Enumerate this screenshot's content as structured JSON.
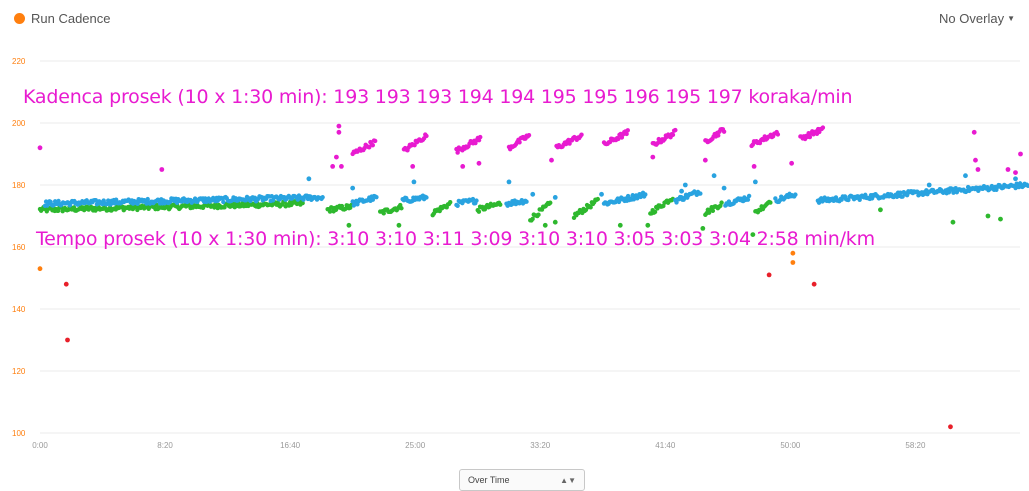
{
  "legend": {
    "label": "Run Cadence",
    "color": "#ff7f0e"
  },
  "overlay": {
    "label": "No Overlay"
  },
  "annotations": {
    "cadence": "Kadenca prosek (10 x 1:30 min):  193 193  193  194 194 195  195 196  195 197 koraka/min",
    "tempo": "Tempo prosek (10 x 1:30 min): 3:10 3:10 3:11 3:09 3:10 3:10 3:05 3:03 3:04 2:58 min/km"
  },
  "time_select": {
    "value": "Over Time"
  },
  "colors": {
    "orange": "#ff7f0e",
    "red": "#e8202a",
    "green": "#2eb82e",
    "blue": "#29a3e0",
    "magenta": "#e81bd0",
    "grid": "#ebebeb",
    "ytick": "#ff7f0e",
    "xtick": "#999999"
  },
  "chart_data": {
    "type": "scatter",
    "title": "",
    "xlabel": "",
    "ylabel": "",
    "xlim": [
      0,
      3950
    ],
    "ylim": [
      100,
      220
    ],
    "yticks": [
      100,
      120,
      140,
      160,
      180,
      200,
      220
    ],
    "xticks": [
      {
        "value": 0,
        "label": "0:00"
      },
      {
        "value": 500,
        "label": "8:20"
      },
      {
        "value": 1000,
        "label": "16:40"
      },
      {
        "value": 1500,
        "label": "25:00"
      },
      {
        "value": 2000,
        "label": "33:20"
      },
      {
        "value": 2500,
        "label": "41:40"
      },
      {
        "value": 3000,
        "label": "50:00"
      },
      {
        "value": 3500,
        "label": "58:20"
      }
    ],
    "grid": true,
    "legend_position": "top-left",
    "series": [
      {
        "name": "Run Cadence",
        "color_key": "orange",
        "points": [
          [
            0,
            153
          ],
          [
            3010,
            158
          ],
          [
            3010,
            155
          ]
        ]
      },
      {
        "color_key": "red",
        "points": [
          [
            105,
            148
          ],
          [
            110,
            130
          ],
          [
            2915,
            151
          ],
          [
            3095,
            148
          ],
          [
            3640,
            102
          ]
        ]
      },
      {
        "color_key": "green",
        "segments": [
          {
            "x0": 0,
            "x1": 1050,
            "y0": 172,
            "y1": 174
          },
          {
            "x0": 1150,
            "x1": 1245,
            "y0": 172,
            "y1": 173
          },
          {
            "x0": 1360,
            "x1": 1445,
            "y0": 171,
            "y1": 173
          },
          {
            "x0": 1570,
            "x1": 1640,
            "y0": 171,
            "y1": 174
          },
          {
            "x0": 1750,
            "x1": 1840,
            "y0": 172,
            "y1": 174
          },
          {
            "x0": 1960,
            "x1": 2040,
            "y0": 169,
            "y1": 174
          },
          {
            "x0": 2135,
            "x1": 2230,
            "y0": 170,
            "y1": 175
          },
          {
            "x0": 2440,
            "x1": 2530,
            "y0": 171,
            "y1": 176
          },
          {
            "x0": 2660,
            "x1": 2725,
            "y0": 171,
            "y1": 174
          },
          {
            "x0": 2860,
            "x1": 2920,
            "y0": 171,
            "y1": 175
          }
        ],
        "points": [
          [
            1235,
            167
          ],
          [
            1435,
            167
          ],
          [
            2020,
            167
          ],
          [
            2060,
            168
          ],
          [
            2320,
            167
          ],
          [
            2430,
            167
          ],
          [
            2650,
            166
          ],
          [
            2850,
            164
          ],
          [
            3360,
            172
          ],
          [
            3650,
            168
          ],
          [
            3790,
            170
          ],
          [
            3840,
            169
          ]
        ]
      },
      {
        "color_key": "blue",
        "segments": [
          {
            "x0": 20,
            "x1": 1130,
            "y0": 174,
            "y1": 176
          },
          {
            "x0": 1250,
            "x1": 1345,
            "y0": 174,
            "y1": 176
          },
          {
            "x0": 1450,
            "x1": 1545,
            "y0": 175,
            "y1": 176
          },
          {
            "x0": 1665,
            "x1": 1745,
            "y0": 174,
            "y1": 175
          },
          {
            "x0": 1865,
            "x1": 1945,
            "y0": 174,
            "y1": 175
          },
          {
            "x0": 2255,
            "x1": 2420,
            "y0": 174,
            "y1": 177
          },
          {
            "x0": 2540,
            "x1": 2640,
            "y0": 175,
            "y1": 178
          },
          {
            "x0": 2740,
            "x1": 2835,
            "y0": 174,
            "y1": 176
          },
          {
            "x0": 2940,
            "x1": 3020,
            "y0": 175,
            "y1": 177
          },
          {
            "x0": 3110,
            "x1": 3950,
            "y0": 175,
            "y1": 180
          }
        ],
        "points": [
          [
            1075,
            182
          ],
          [
            1250,
            179
          ],
          [
            1495,
            181
          ],
          [
            1875,
            181
          ],
          [
            1970,
            177
          ],
          [
            2060,
            176
          ],
          [
            2245,
            177
          ],
          [
            2565,
            178
          ],
          [
            2580,
            180
          ],
          [
            2695,
            183
          ],
          [
            2735,
            179
          ],
          [
            2860,
            181
          ],
          [
            3555,
            180
          ],
          [
            3700,
            183
          ],
          [
            3900,
            182
          ]
        ]
      },
      {
        "color_key": "magenta",
        "segments": [
          {
            "x0": 1250,
            "x1": 1340,
            "y0": 190,
            "y1": 194
          },
          {
            "x0": 1455,
            "x1": 1545,
            "y0": 191,
            "y1": 196
          },
          {
            "x0": 1665,
            "x1": 1760,
            "y0": 191,
            "y1": 195
          },
          {
            "x0": 1875,
            "x1": 1955,
            "y0": 192,
            "y1": 196
          },
          {
            "x0": 2065,
            "x1": 2165,
            "y0": 192,
            "y1": 196
          },
          {
            "x0": 2255,
            "x1": 2350,
            "y0": 193,
            "y1": 197
          },
          {
            "x0": 2450,
            "x1": 2540,
            "y0": 193,
            "y1": 197
          },
          {
            "x0": 2660,
            "x1": 2735,
            "y0": 194,
            "y1": 198
          },
          {
            "x0": 2845,
            "x1": 2950,
            "y0": 193,
            "y1": 197
          },
          {
            "x0": 3040,
            "x1": 3130,
            "y0": 195,
            "y1": 198
          }
        ],
        "points": [
          [
            0,
            192
          ],
          [
            487,
            185
          ],
          [
            1170,
            186
          ],
          [
            1195,
            199
          ],
          [
            1195,
            197
          ],
          [
            1205,
            186
          ],
          [
            1185,
            189
          ],
          [
            1490,
            186
          ],
          [
            1690,
            186
          ],
          [
            1755,
            187
          ],
          [
            2045,
            188
          ],
          [
            2450,
            189
          ],
          [
            2660,
            188
          ],
          [
            2855,
            186
          ],
          [
            3005,
            187
          ],
          [
            3735,
            197
          ],
          [
            3740,
            188
          ],
          [
            3750,
            185
          ],
          [
            3870,
            185
          ],
          [
            3900,
            184
          ],
          [
            3920,
            190
          ]
        ]
      }
    ]
  }
}
